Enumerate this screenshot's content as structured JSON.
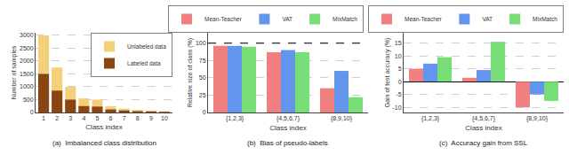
{
  "chart_data": [
    {
      "type": "overlaid_bar",
      "title": "(a)  Imbalanced class distribution",
      "xlabel": "Class index",
      "ylabel": "Number of samples",
      "x": [
        1,
        2,
        3,
        4,
        5,
        6,
        7,
        8,
        9,
        10
      ],
      "series": [
        {
          "name": "Unlabeled data",
          "color": "#F5D07A",
          "values": [
            3000,
            1750,
            1000,
            550,
            500,
            250,
            150,
            100,
            75,
            50
          ]
        },
        {
          "name": "Labeled data",
          "color": "#8B4513",
          "values": [
            1500,
            850,
            500,
            250,
            230,
            120,
            80,
            50,
            40,
            25
          ]
        }
      ],
      "xlim": [
        0.4,
        10.6
      ],
      "xticks": [
        1,
        2,
        3,
        4,
        5,
        6,
        7,
        8,
        9,
        10
      ],
      "ylim": [
        0,
        3100
      ],
      "yticks": [
        0,
        500,
        1000,
        1500,
        2000,
        2500,
        3000
      ],
      "grid": true,
      "legend": "upper right"
    },
    {
      "type": "bar",
      "title": "(b)  Bias of pseudo-labels",
      "xlabel": "Class index",
      "ylabel": "Relative size of class (%)",
      "categories": [
        "{1,2,3}",
        "{4,5,6,7}",
        "{8,9,10}"
      ],
      "series": [
        {
          "name": "Mean-Teacher",
          "color": "#F08080",
          "values": [
            96,
            87,
            35
          ]
        },
        {
          "name": "VAT",
          "color": "#6495ED",
          "values": [
            96,
            90,
            60
          ]
        },
        {
          "name": "MixMatch",
          "color": "#77DD77",
          "values": [
            95,
            87,
            22
          ]
        }
      ],
      "ylim": [
        0,
        115
      ],
      "yticks": [
        0,
        25,
        50,
        75,
        100
      ],
      "hline": 100,
      "grid": true
    },
    {
      "type": "bar",
      "title": "(c)  Accuracy gain from SSL",
      "xlabel": "Class index",
      "ylabel": "Gain of test accuracy (%)",
      "categories": [
        "{1,2,3}",
        "{4,5,6,7}",
        "{8,9,10}"
      ],
      "series": [
        {
          "name": "Mean-Teacher",
          "color": "#F08080",
          "values": [
            5.0,
            1.5,
            -10.0
          ]
        },
        {
          "name": "VAT",
          "color": "#6495ED",
          "values": [
            7.0,
            4.5,
            -5.0
          ]
        },
        {
          "name": "MixMatch",
          "color": "#77DD77",
          "values": [
            9.5,
            15.5,
            -7.5
          ]
        }
      ],
      "ylim": [
        -12,
        19
      ],
      "yticks": [
        -10,
        -5,
        0,
        5,
        10,
        15
      ],
      "grid": true
    }
  ]
}
